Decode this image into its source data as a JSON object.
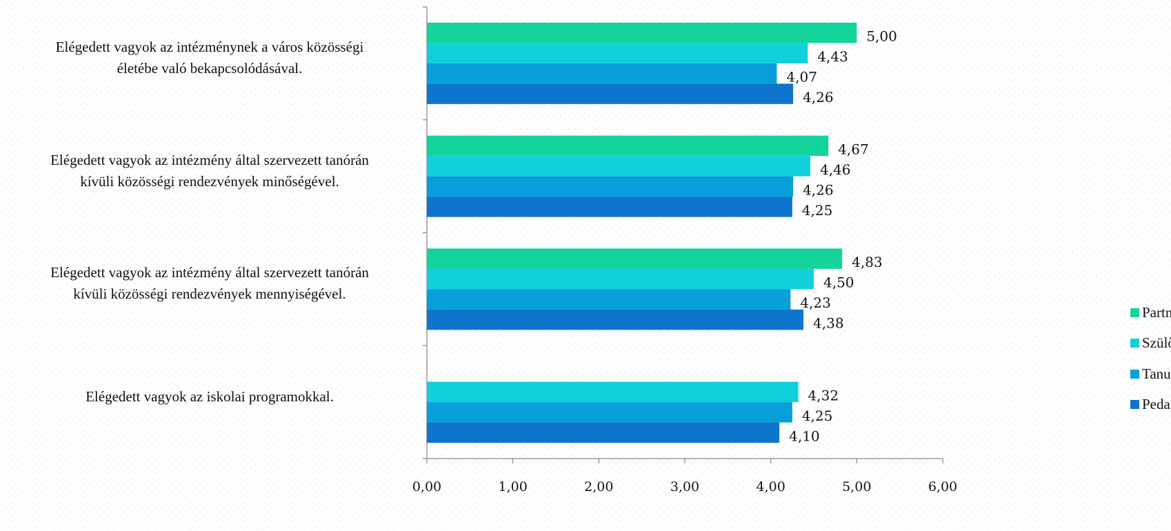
{
  "colors": {
    "Partner": "#14d39b",
    "Szülők": "#0fd0db",
    "Tanuló": "#069fd9",
    "Pedagógus": "#0f74cc",
    "axis": "#8c8c8c"
  },
  "chart_data": {
    "type": "bar",
    "orientation": "horizontal",
    "xlim": [
      0,
      6
    ],
    "x_ticks": [
      "0,00",
      "1,00",
      "2,00",
      "3,00",
      "4,00",
      "5,00",
      "6,00"
    ],
    "legend_position": "right",
    "grid": false,
    "categories": [
      "Elégedett vagyok az intézménynek a város közösségi életébe való bekapcsolódásával.",
      "Elégedett vagyok az intézmény által szervezett tanórán kívüli közösségi rendezvények minőségével.",
      "Elégedett vagyok az intézmény által szervezett tanórán kívüli közösségi rendezvények mennyiségével.",
      "Elégedett vagyok az iskolai programokkal."
    ],
    "series": [
      {
        "name": "Partner",
        "values": [
          5.0,
          4.67,
          4.83,
          null
        ],
        "labels": [
          "5,00",
          "4,67",
          "4,83",
          ""
        ]
      },
      {
        "name": "Szülők",
        "values": [
          4.43,
          4.46,
          4.5,
          4.32
        ],
        "labels": [
          "4,43",
          "4,46",
          "4,50",
          "4,32"
        ]
      },
      {
        "name": "Tanuló",
        "values": [
          4.07,
          4.26,
          4.23,
          4.25
        ],
        "labels": [
          "4,07",
          "4,26",
          "4,23",
          "4,25"
        ]
      },
      {
        "name": "Pedagógus",
        "values": [
          4.26,
          4.25,
          4.38,
          4.1
        ],
        "labels": [
          "4,26",
          "4,25",
          "4,38",
          "4,10"
        ]
      }
    ]
  },
  "category_lines": [
    [
      "Elégedett vagyok az intézménynek a város közösségi",
      "életébe való bekapcsolódásával."
    ],
    [
      "Elégedett vagyok az intézmény által szervezett tanórán",
      "kívüli közösségi rendezvények minőségével."
    ],
    [
      "Elégedett vagyok az intézmény által szervezett tanórán",
      "kívüli közösségi rendezvények mennyiségével."
    ],
    [
      "Elégedett vagyok az iskolai programokkal."
    ]
  ]
}
